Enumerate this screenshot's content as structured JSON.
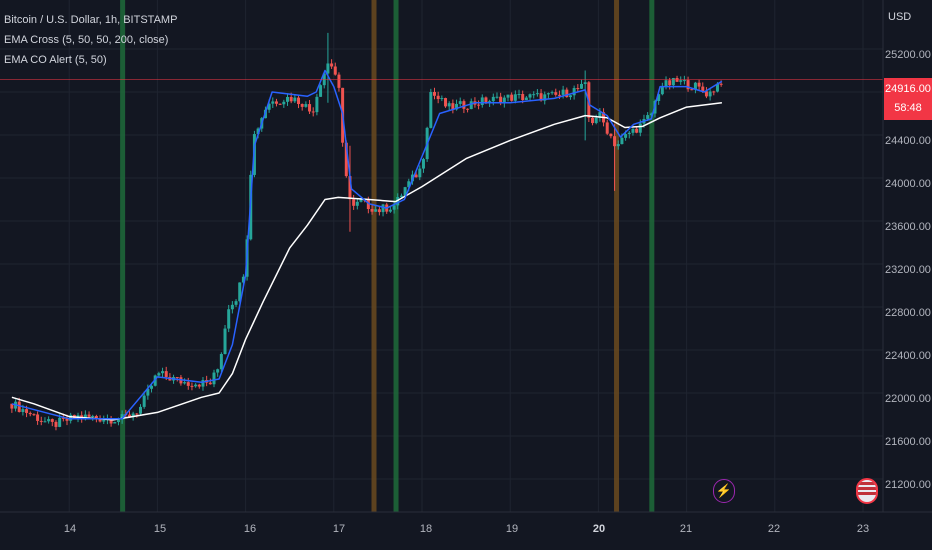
{
  "legend": {
    "symbol": "Bitcoin / U.S. Dollar, 1h, BITSTAMP",
    "indicator1": "EMA Cross (5, 50, 50, 200, close)",
    "indicator2": "EMA CO Alert (5, 50)"
  },
  "price_axis": {
    "currency": "USD",
    "ticks": [
      "25200.00",
      "24800.00",
      "24400.00",
      "24000.00",
      "23600.00",
      "23200.00",
      "22800.00",
      "22400.00",
      "22000.00",
      "21600.00",
      "21200.00"
    ]
  },
  "time_axis": {
    "ticks": [
      "14",
      "15",
      "16",
      "17",
      "18",
      "19",
      "20",
      "21",
      "22",
      "23"
    ],
    "bold_tick": "20"
  },
  "last_price": {
    "value": "24916.00",
    "countdown": "58:48"
  },
  "icons": {
    "alert": "lightning-icon",
    "flag": "us-flag-icon"
  },
  "colors": {
    "background": "#131722",
    "grid": "#1f2430",
    "up_candle": "#26a69a",
    "down_candle": "#ef5350",
    "ema_fast": "#2962ff",
    "ema_slow": "#ffffff",
    "cross_up_band": "#1e6b3a",
    "cross_down_band": "#6b4a1e",
    "price_line": "#f23645"
  },
  "chart_data": {
    "type": "candlestick",
    "title": "Bitcoin / U.S. Dollar, 1h, BITSTAMP",
    "xlabel": "",
    "ylabel": "USD",
    "ylim": [
      21050,
      25550
    ],
    "x_ticks_day": [
      14,
      15,
      16,
      17,
      18,
      19,
      20,
      21,
      22,
      23
    ],
    "grid": true,
    "ema_fast_checkpoints": [
      [
        13.35,
        21900
      ],
      [
        14.0,
        21760
      ],
      [
        14.6,
        21760
      ],
      [
        15.0,
        22150
      ],
      [
        15.5,
        22100
      ],
      [
        15.7,
        22130
      ],
      [
        15.85,
        22450
      ],
      [
        16.0,
        23100
      ],
      [
        16.05,
        23700
      ],
      [
        16.1,
        24300
      ],
      [
        16.3,
        24800
      ],
      [
        16.7,
        24760
      ],
      [
        16.8,
        24800
      ],
      [
        16.9,
        25000
      ],
      [
        17.0,
        24850
      ],
      [
        17.1,
        24600
      ],
      [
        17.2,
        23900
      ],
      [
        17.4,
        23760
      ],
      [
        17.6,
        23720
      ],
      [
        17.8,
        23800
      ],
      [
        18.0,
        24200
      ],
      [
        18.2,
        24600
      ],
      [
        18.6,
        24700
      ],
      [
        19.0,
        24700
      ],
      [
        19.5,
        24740
      ],
      [
        19.85,
        24820
      ],
      [
        19.9,
        24680
      ],
      [
        20.1,
        24580
      ],
      [
        20.25,
        24380
      ],
      [
        20.4,
        24500
      ],
      [
        20.6,
        24550
      ],
      [
        20.7,
        24850
      ],
      [
        21.0,
        24850
      ],
      [
        21.2,
        24800
      ],
      [
        21.4,
        24900
      ]
    ],
    "ema_slow_checkpoints": [
      [
        13.35,
        21960
      ],
      [
        13.6,
        21900
      ],
      [
        14.0,
        21780
      ],
      [
        14.5,
        21750
      ],
      [
        15.0,
        21820
      ],
      [
        15.5,
        21960
      ],
      [
        15.7,
        22000
      ],
      [
        15.85,
        22180
      ],
      [
        16.0,
        22500
      ],
      [
        16.2,
        22850
      ],
      [
        16.5,
        23350
      ],
      [
        16.7,
        23560
      ],
      [
        16.9,
        23800
      ],
      [
        17.05,
        23820
      ],
      [
        17.4,
        23800
      ],
      [
        17.7,
        23780
      ],
      [
        18.0,
        23920
      ],
      [
        18.5,
        24180
      ],
      [
        19.0,
        24350
      ],
      [
        19.5,
        24500
      ],
      [
        19.85,
        24580
      ],
      [
        20.1,
        24560
      ],
      [
        20.3,
        24470
      ],
      [
        20.5,
        24480
      ],
      [
        20.7,
        24560
      ],
      [
        21.0,
        24660
      ],
      [
        21.4,
        24700
      ]
    ],
    "close_checkpoints": [
      [
        13.35,
        21900
      ],
      [
        13.8,
        21700
      ],
      [
        14.1,
        21780
      ],
      [
        14.5,
        21760
      ],
      [
        14.6,
        21760
      ],
      [
        14.8,
        21850
      ],
      [
        15.0,
        22180
      ],
      [
        15.3,
        22100
      ],
      [
        15.6,
        22090
      ],
      [
        15.7,
        22250
      ],
      [
        15.8,
        22800
      ],
      [
        15.9,
        22900
      ],
      [
        16.0,
        23200
      ],
      [
        16.05,
        24000
      ],
      [
        16.1,
        24400
      ],
      [
        16.25,
        24700
      ],
      [
        16.5,
        24750
      ],
      [
        16.65,
        24700
      ],
      [
        16.75,
        24600
      ],
      [
        16.85,
        24900
      ],
      [
        16.95,
        25100
      ],
      [
        17.05,
        24900
      ],
      [
        17.1,
        24300
      ],
      [
        17.2,
        23700
      ],
      [
        17.3,
        23780
      ],
      [
        17.5,
        23700
      ],
      [
        17.7,
        23750
      ],
      [
        17.8,
        23900
      ],
      [
        18.0,
        24100
      ],
      [
        18.1,
        24800
      ],
      [
        18.3,
        24650
      ],
      [
        18.6,
        24700
      ],
      [
        19.0,
        24750
      ],
      [
        19.5,
        24760
      ],
      [
        19.85,
        24850
      ],
      [
        19.9,
        24500
      ],
      [
        20.0,
        24600
      ],
      [
        20.2,
        24300
      ],
      [
        20.35,
        24420
      ],
      [
        20.5,
        24500
      ],
      [
        20.6,
        24600
      ],
      [
        20.7,
        24850
      ],
      [
        20.9,
        24900
      ],
      [
        21.1,
        24850
      ],
      [
        21.25,
        24780
      ],
      [
        21.4,
        24916
      ]
    ],
    "candle_spec": {
      "start_day": 13.35,
      "end_day": 21.4,
      "step_hours": 1,
      "wobble": 45,
      "wick_extra": 40
    },
    "spikes": [
      {
        "day": 16.95,
        "low": 24700,
        "high": 25350
      },
      {
        "day": 17.2,
        "low": 23500,
        "high": 24300
      },
      {
        "day": 19.85,
        "low": 24350,
        "high": 25000
      },
      {
        "day": 20.2,
        "low": 23880,
        "high": 24500
      }
    ],
    "ema_cross_up_days": [
      14.6,
      17.7,
      20.6
    ],
    "ema_cross_down_days": [
      17.45,
      20.2
    ],
    "last_price": 24916
  }
}
